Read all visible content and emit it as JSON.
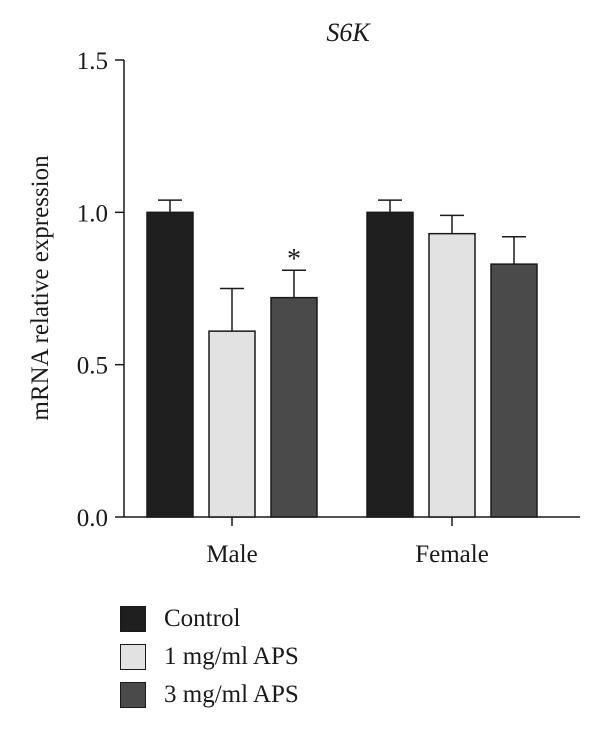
{
  "chart_data": {
    "type": "bar",
    "title": "S6K",
    "ylabel": "mRNA relative expression",
    "xlabel": "",
    "categories": [
      "Male",
      "Female"
    ],
    "ylim": [
      0,
      1.5
    ],
    "yticks": [
      "0.0",
      "0.5",
      "1.0",
      "1.5"
    ],
    "ytick_values": [
      0,
      0.5,
      1.0,
      1.5
    ],
    "series": [
      {
        "name": "Control",
        "values": [
          1.0,
          1.0
        ],
        "errors": [
          0.04,
          0.04
        ],
        "color": "#1f1f1f"
      },
      {
        "name": "1 mg/ml APS",
        "values": [
          0.61,
          0.93
        ],
        "errors": [
          0.14,
          0.06
        ],
        "color": "#e2e2e2"
      },
      {
        "name": "3 mg/ml APS",
        "values": [
          0.72,
          0.83
        ],
        "errors": [
          0.09,
          0.09
        ],
        "color": "#4a4a4a"
      }
    ],
    "annotations": [
      {
        "category": "Male",
        "series": "3 mg/ml APS",
        "text": "*"
      }
    ],
    "legend_position": "bottom-left",
    "grid": false
  }
}
